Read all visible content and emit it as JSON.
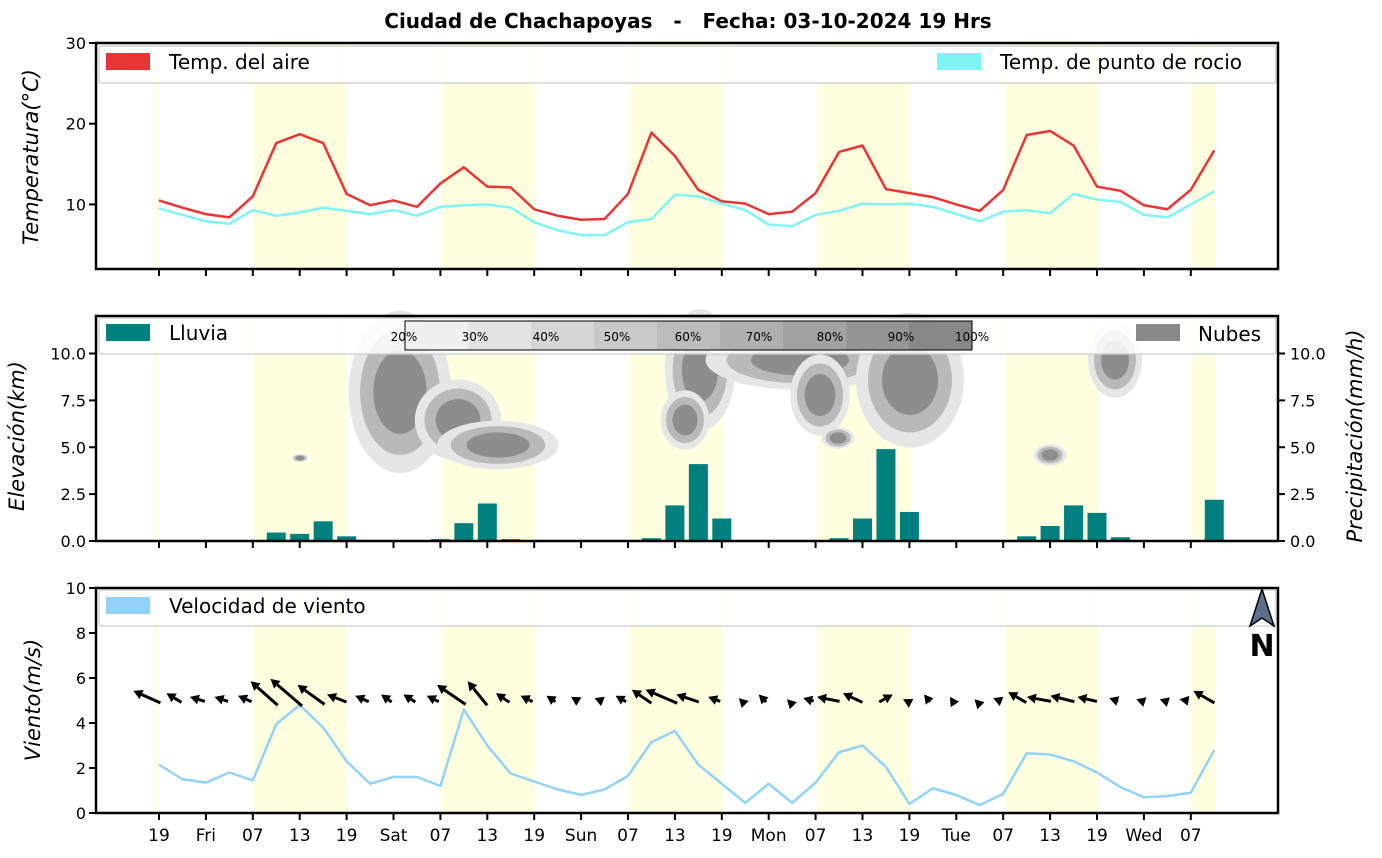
{
  "title": "Ciudad de Chachapoyas   -   Fecha: 03-10-2024 19 Hrs",
  "colors": {
    "air": "#e83535",
    "dew": "#80f4f4",
    "rain": "#007f7f",
    "cloud": "#888888",
    "wind": "#93d3fa",
    "day_shade": "#ffffe0"
  },
  "x_ticks": [
    "19",
    "Fri",
    "07",
    "13",
    "19",
    "Sat",
    "07",
    "13",
    "19",
    "Sun",
    "07",
    "13",
    "19",
    "Mon",
    "07",
    "13",
    "19",
    "Tue",
    "07",
    "13",
    "19",
    "Wed",
    "07"
  ],
  "north_label": "N",
  "north_icon": "north-arrow-icon",
  "chart_data": [
    {
      "type": "line",
      "name": "temperature",
      "ylabel": "Temperatura(°C)",
      "ylim": [
        2,
        30
      ],
      "yticks": [
        10,
        20,
        30
      ],
      "x": [
        0,
        1,
        2,
        3,
        4,
        5,
        6,
        7,
        8,
        9,
        10,
        11,
        12,
        13,
        14,
        15,
        16,
        17,
        18,
        19,
        20,
        21,
        22,
        23,
        24,
        25,
        26,
        27,
        28,
        29,
        30,
        31,
        32,
        33,
        34,
        35,
        36,
        37,
        38,
        39,
        40,
        41,
        42,
        43
      ],
      "series": [
        {
          "name": "Temp. del aire",
          "values": [
            10.5,
            9.6,
            8.8,
            8.4,
            11.0,
            17.6,
            18.7,
            17.6,
            11.3,
            9.9,
            10.5,
            9.7,
            12.6,
            14.6,
            12.2,
            12.1,
            9.4,
            8.6,
            8.1,
            8.2,
            11.3,
            18.9,
            16.0,
            11.8,
            10.4,
            10.1,
            8.8,
            9.1,
            11.4,
            16.5,
            17.3,
            11.9,
            11.4,
            10.9,
            10.0,
            9.2,
            11.8,
            18.6,
            19.1,
            17.3,
            12.2,
            11.7,
            9.9,
            9.4
          ],
          "values_extra": [
            11.8,
            16.7
          ]
        },
        {
          "name": "Temp. de punto de rocio",
          "values": [
            9.5,
            8.7,
            7.9,
            7.6,
            9.3,
            8.6,
            9.0,
            9.6,
            9.2,
            8.8,
            9.3,
            8.6,
            9.7,
            9.9,
            10.0,
            9.6,
            7.8,
            6.8,
            6.2,
            6.2,
            7.8,
            8.2,
            11.2,
            11.0,
            10.1,
            9.3,
            7.5,
            7.3,
            8.7,
            9.2,
            10.1,
            10.0,
            10.1,
            9.7,
            8.8,
            7.9,
            9.1,
            9.3,
            8.9,
            11.3,
            10.6,
            10.3,
            8.7,
            8.4
          ],
          "values_extra": [
            10.0,
            11.6
          ]
        }
      ],
      "legend": [
        "top-left",
        "top-right"
      ]
    },
    {
      "type": "bar",
      "name": "precipitation-clouds",
      "ylabel_left": "Elevación(km)",
      "ylabel_right": "Precipitación(mm/h)",
      "ylim": [
        0,
        12
      ],
      "yticks": [
        0.0,
        2.5,
        5.0,
        7.5,
        10.0
      ],
      "yticklabels": [
        "0.0",
        "2.5",
        "5.0",
        "7.5",
        "10.0"
      ],
      "series": [
        {
          "name": "Lluvia",
          "values": [
            0,
            0,
            0,
            0,
            0,
            0.45,
            0.38,
            1.05,
            0.25,
            0.05,
            0.05,
            0.05,
            0.1,
            0.95,
            2.0,
            0.1,
            0,
            0,
            0,
            0,
            0,
            0.15,
            1.9,
            4.1,
            1.2,
            0,
            0,
            0,
            0,
            0.15,
            1.2,
            4.9,
            1.55,
            0,
            0,
            0,
            0,
            0.25,
            0.8,
            1.9,
            1.5,
            0.2,
            0,
            0,
            0,
            2.2
          ]
        },
        {
          "name": "Nubes",
          "values": []
        }
      ],
      "colorbar_labels": [
        "20%",
        "30%",
        "40%",
        "50%",
        "60%",
        "70%",
        "80%",
        "90%",
        "100%"
      ]
    },
    {
      "type": "line",
      "name": "wind",
      "ylabel": "Viento(m/s)",
      "ylim": [
        0,
        10
      ],
      "yticks": [
        0,
        2,
        4,
        6,
        8,
        10
      ],
      "series": [
        {
          "name": "Velocidad de viento",
          "values": [
            2.15,
            1.5,
            1.35,
            1.8,
            1.45,
            3.95,
            4.8,
            3.8,
            2.3,
            1.3,
            1.6,
            1.6,
            1.2,
            4.6,
            3.0,
            1.75,
            1.4,
            1.05,
            0.8,
            1.05,
            1.65,
            3.15,
            3.65,
            2.15,
            1.3,
            0.45,
            1.3,
            0.45,
            1.35,
            2.7,
            3.0,
            2.05,
            0.4,
            1.1,
            0.8,
            0.35,
            0.85,
            2.65,
            2.6,
            2.3,
            1.8,
            1.15,
            0.7,
            0.75,
            0.9,
            2.8
          ]
        }
      ],
      "arrows": [
        {
          "u": -1.8,
          "v": 0.8
        },
        {
          "u": -1.0,
          "v": 0.6
        },
        {
          "u": -1.0,
          "v": 0.3
        },
        {
          "u": -0.9,
          "v": 0.3
        },
        {
          "u": -0.9,
          "v": 0.4
        },
        {
          "u": -1.8,
          "v": 1.6
        },
        {
          "u": -2.1,
          "v": 1.8
        },
        {
          "u": -1.8,
          "v": 1.3
        },
        {
          "u": -1.3,
          "v": 0.5
        },
        {
          "u": -0.9,
          "v": 0.4
        },
        {
          "u": -0.7,
          "v": 0.5
        },
        {
          "u": -0.8,
          "v": 0.5
        },
        {
          "u": -0.8,
          "v": 0.4
        },
        {
          "u": -1.9,
          "v": 1.3
        },
        {
          "u": -1.3,
          "v": 1.6
        },
        {
          "u": -0.9,
          "v": 0.6
        },
        {
          "u": -0.8,
          "v": 0.4
        },
        {
          "u": -0.6,
          "v": 0.4
        },
        {
          "u": -0.5,
          "v": 0.3
        },
        {
          "u": -0.5,
          "v": 0.2
        },
        {
          "u": -0.7,
          "v": 0.4
        },
        {
          "u": -1.3,
          "v": 0.9
        },
        {
          "u": -2.1,
          "v": 0.9
        },
        {
          "u": -1.5,
          "v": 0.5
        },
        {
          "u": -0.8,
          "v": 0.3
        },
        {
          "u": -0.2,
          "v": 0.2
        },
        {
          "u": -0.5,
          "v": 0.5
        },
        {
          "u": -0.1,
          "v": 0.1
        },
        {
          "u": -0.7,
          "v": 0.2
        },
        {
          "u": -1.5,
          "v": 0.3
        },
        {
          "u": -1.3,
          "v": 0.6
        },
        {
          "u": 0.9,
          "v": 0.5
        },
        {
          "u": -0.2,
          "v": 0.1
        },
        {
          "u": -0.4,
          "v": 0.5
        },
        {
          "u": -0.2,
          "v": 0.3
        },
        {
          "u": -0.1,
          "v": 0.1
        },
        {
          "u": -0.5,
          "v": 0.2
        },
        {
          "u": -1.2,
          "v": 0.7
        },
        {
          "u": -1.6,
          "v": 0.3
        },
        {
          "u": -1.6,
          "v": 0.4
        },
        {
          "u": -1.3,
          "v": 0.3
        },
        {
          "u": -0.6,
          "v": 0.2
        },
        {
          "u": -0.3,
          "v": 0.1
        },
        {
          "u": -0.3,
          "v": 0.1
        },
        {
          "u": -0.6,
          "v": 0.1
        },
        {
          "u": -1.4,
          "v": 0.8
        }
      ]
    }
  ]
}
